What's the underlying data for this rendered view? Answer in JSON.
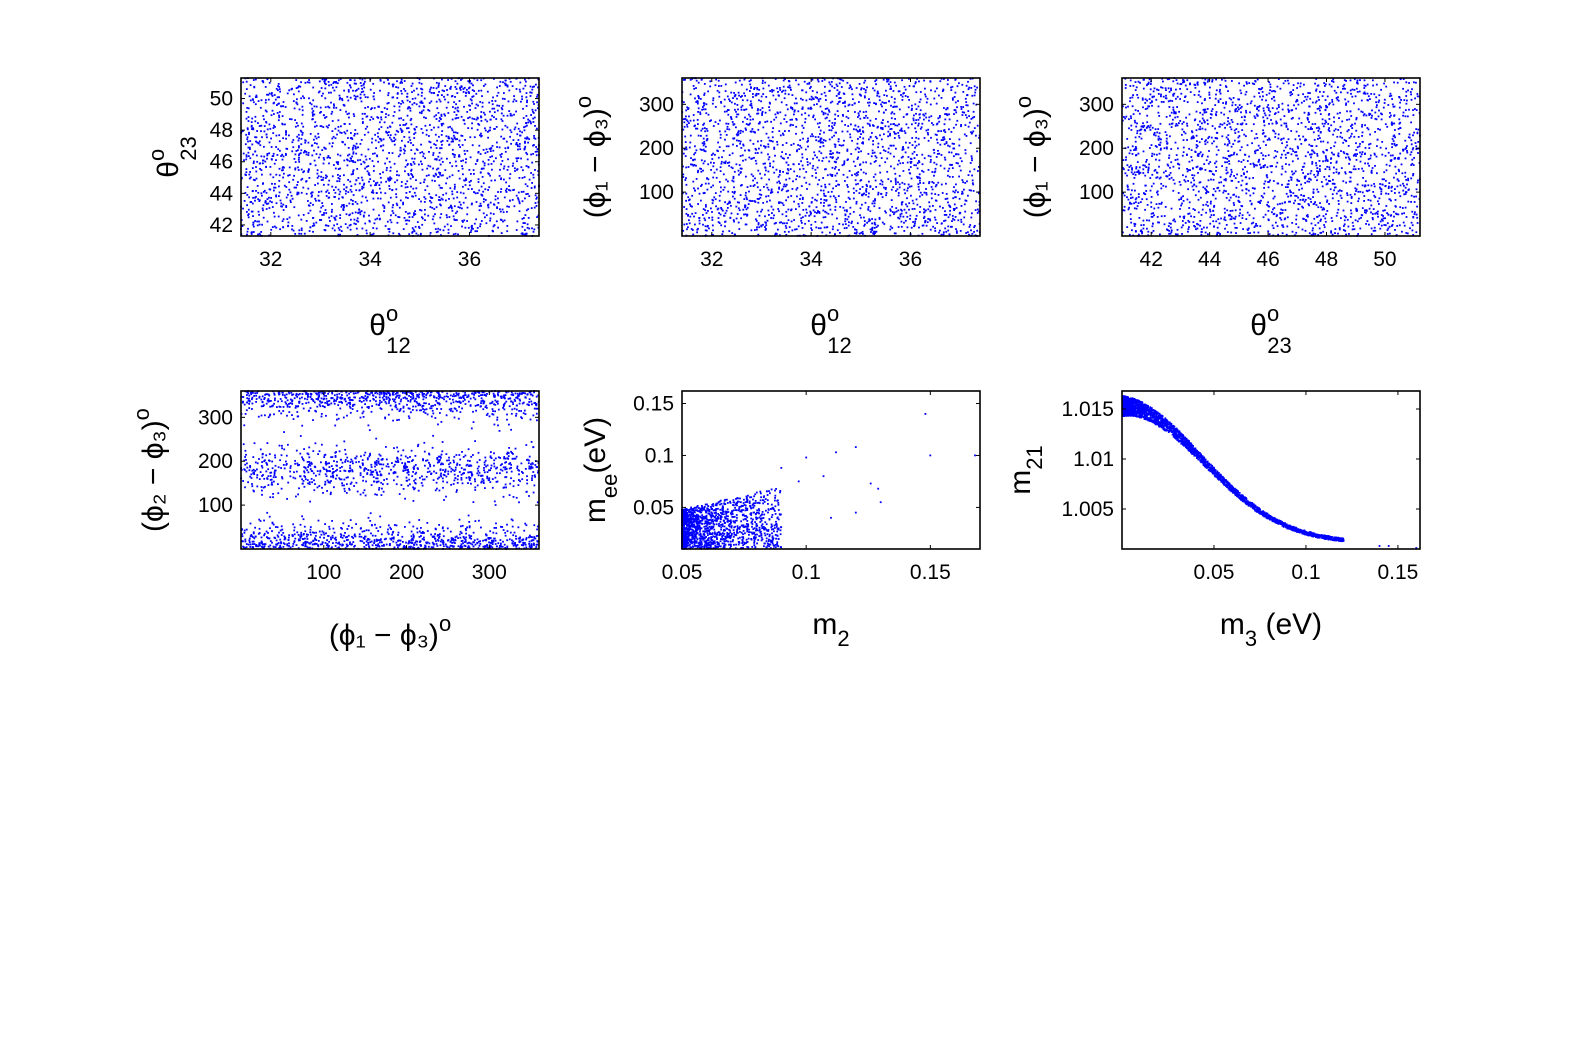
{
  "chart_data": [
    {
      "id": "p1",
      "type": "scatter",
      "xlim": [
        31.4,
        37.4
      ],
      "ylim": [
        41.3,
        51.3
      ],
      "xticks": [
        "32",
        "34",
        "36"
      ],
      "yticks": [
        "42",
        "44",
        "46",
        "48",
        "50"
      ],
      "xlabel": {
        "main": "θ",
        "sup": "o",
        "sub": "12"
      },
      "ylabel": {
        "main": "θ",
        "sup": "o",
        "sub": "23"
      },
      "color": "#0000ff",
      "points": {
        "kind": "uniform",
        "count": 2200,
        "seed": 11
      }
    },
    {
      "id": "p2",
      "type": "scatter",
      "xlim": [
        31.4,
        37.4
      ],
      "ylim": [
        0,
        360
      ],
      "xticks": [
        "32",
        "34",
        "36"
      ],
      "yticks": [
        "100",
        "200",
        "300"
      ],
      "xlabel": {
        "main": "θ",
        "sup": "o",
        "sub": "12"
      },
      "ylabel": {
        "text": "(ϕ₁ − ϕ₃)",
        "sup": "o"
      },
      "color": "#0000ff",
      "points": {
        "kind": "uniform",
        "count": 2200,
        "seed": 23
      }
    },
    {
      "id": "p3",
      "type": "scatter",
      "xlim": [
        41.0,
        51.2
      ],
      "ylim": [
        0,
        360
      ],
      "xticks": [
        "42",
        "44",
        "46",
        "48",
        "50"
      ],
      "yticks": [
        "100",
        "200",
        "300"
      ],
      "xlabel": {
        "main": "θ",
        "sup": "o",
        "sub": "23"
      },
      "ylabel": {
        "text": "(ϕ₁ − ϕ₃)",
        "sup": "o"
      },
      "color": "#0000ff",
      "points": {
        "kind": "uniform",
        "count": 2200,
        "seed": 37
      }
    },
    {
      "id": "p4",
      "type": "scatter",
      "xlim": [
        0,
        360
      ],
      "ylim": [
        0,
        360
      ],
      "xticks": [
        "100",
        "200",
        "300"
      ],
      "yticks": [
        "100",
        "200",
        "300"
      ],
      "xlabel": {
        "text": "(ϕ₁ − ϕ₃)",
        "sup": "o"
      },
      "ylabel": {
        "text": "(ϕ₂ − ϕ₃)",
        "sup": "o"
      },
      "color": "#0000ff",
      "points": {
        "kind": "bands",
        "count": 2400,
        "seed": 41,
        "bands": [
          0,
          180,
          360
        ],
        "spread": 28
      }
    },
    {
      "id": "p5",
      "type": "scatter",
      "xlim": [
        0.05,
        0.17
      ],
      "ylim": [
        0.01,
        0.162
      ],
      "xticks": [
        "0.05",
        "0.1",
        "0.15"
      ],
      "yticks": [
        "0.05",
        "0.1",
        "0.15"
      ],
      "xlabel": {
        "main": "m",
        "sub": "2"
      },
      "ylabel": {
        "main": "m",
        "sub": "ee",
        "after": "(eV)"
      },
      "color": "#0000ff",
      "points": {
        "kind": "wedge",
        "count": 1600,
        "seed": 53
      },
      "outliers": [
        [
          0.148,
          0.14
        ],
        [
          0.15,
          0.1
        ],
        [
          0.168,
          0.1
        ],
        [
          0.12,
          0.108
        ],
        [
          0.112,
          0.103
        ],
        [
          0.1,
          0.098
        ],
        [
          0.107,
          0.08
        ],
        [
          0.126,
          0.073
        ],
        [
          0.129,
          0.068
        ],
        [
          0.13,
          0.055
        ],
        [
          0.11,
          0.04
        ],
        [
          0.12,
          0.045
        ],
        [
          0.097,
          0.075
        ],
        [
          0.09,
          0.088
        ]
      ]
    },
    {
      "id": "p6",
      "type": "scatter",
      "xlim": [
        0.0,
        0.162
      ],
      "ylim": [
        1.001,
        1.0168
      ],
      "xticks": [
        "0.05",
        "0.1",
        "0.15"
      ],
      "yticks": [
        "1.005",
        "1.01",
        "1.015"
      ],
      "xlabel": {
        "main": "m",
        "sub": "3",
        "after": " (eV)"
      },
      "ylabel": {
        "main": "m",
        "sub": "21"
      },
      "color": "#0000ff",
      "points": {
        "kind": "curve",
        "count": 2400,
        "seed": 67
      },
      "outliers": [
        [
          0.14,
          1.0013
        ],
        [
          0.145,
          1.0013
        ],
        [
          0.16,
          1.0011
        ]
      ]
    }
  ]
}
